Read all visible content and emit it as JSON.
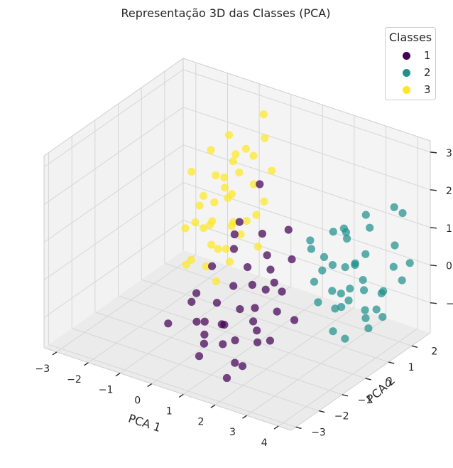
{
  "chart_data": {
    "type": "scatter",
    "projection": "3d",
    "title": "Representação 3D das Classes (PCA)",
    "xlabel": "PCA 1",
    "ylabel": "PCA 2",
    "zlabel": "",
    "xlim": [
      -3.4,
      4.4
    ],
    "ylim": [
      -3.2,
      2.8
    ],
    "zlim": [
      -1.8,
      3.3
    ],
    "xticks": [
      "−3",
      "−2",
      "−1",
      "0",
      "1",
      "2",
      "3",
      "4"
    ],
    "yticks": [
      "−3",
      "−2",
      "−1",
      "0",
      "1",
      "2"
    ],
    "zticks": [
      "−1",
      "0",
      "1",
      "2",
      "3"
    ],
    "xtick_values": [
      -3,
      -2,
      -1,
      0,
      1,
      2,
      3,
      4
    ],
    "ytick_values": [
      -3,
      -2,
      -1,
      0,
      1,
      2
    ],
    "ztick_values": [
      -1,
      0,
      1,
      2,
      3
    ],
    "grid": true,
    "legend": {
      "title": "Classes",
      "position": "top-right"
    },
    "series": [
      {
        "name": "1",
        "color": "#440154",
        "points": [
          [
            1.2,
            -1.6,
            -2.0
          ],
          [
            1.0,
            -1.5,
            -1.2
          ],
          [
            0.4,
            -1.7,
            -1.6
          ],
          [
            1.4,
            -1.2,
            -1.8
          ],
          [
            0.6,
            -1.0,
            -1.0
          ],
          [
            0.9,
            -1.3,
            -0.8
          ],
          [
            1.6,
            -1.8,
            -1.4
          ],
          [
            0.2,
            -1.2,
            -1.3
          ],
          [
            1.1,
            -0.9,
            -0.5
          ],
          [
            0.5,
            -1.6,
            -0.7
          ],
          [
            1.8,
            -1.1,
            -1.1
          ],
          [
            0.8,
            -0.7,
            -1.5
          ],
          [
            0.3,
            -0.8,
            -0.6
          ],
          [
            1.3,
            -0.6,
            -0.9
          ],
          [
            0.7,
            -1.9,
            -1.1
          ],
          [
            1.5,
            -0.8,
            -0.4
          ],
          [
            0.1,
            -1.4,
            -0.9
          ],
          [
            2.0,
            -1.4,
            -0.6
          ],
          [
            1.2,
            -0.5,
            0.0
          ],
          [
            0.6,
            -0.5,
            -0.2
          ],
          [
            -0.2,
            -1.0,
            -0.4
          ],
          [
            0.9,
            -0.3,
            0.3
          ],
          [
            1.4,
            -0.2,
            -0.2
          ],
          [
            0.0,
            -0.6,
            0.2
          ],
          [
            1.7,
            -0.4,
            0.5
          ],
          [
            2.2,
            -0.8,
            -0.3
          ],
          [
            0.4,
            -0.2,
            0.6
          ],
          [
            2.5,
            -1.0,
            0.4
          ],
          [
            -0.5,
            -0.8,
            -0.8
          ],
          [
            1.0,
            0.2,
            1.0
          ],
          [
            1.9,
            0.1,
            1.4
          ],
          [
            0.7,
            0.5,
            2.1
          ],
          [
            1.1,
            0.4,
            -1.9
          ],
          [
            2.3,
            -0.3,
            0.9
          ],
          [
            0.2,
            0.1,
            0.8
          ],
          [
            1.6,
            -0.1,
            0.0
          ],
          [
            -0.8,
            -1.4,
            -1.2
          ],
          [
            2.6,
            -0.6,
            -0.5
          ],
          [
            0.5,
            -0.1,
            1.3
          ],
          [
            1.3,
            0.0,
            0.6
          ]
        ]
      },
      {
        "name": "2",
        "color": "#21918c",
        "points": [
          [
            2.4,
            1.3,
            -0.6
          ],
          [
            2.7,
            1.6,
            -0.9
          ],
          [
            3.0,
            1.9,
            -1.2
          ],
          [
            2.9,
            1.0,
            -0.4
          ],
          [
            3.3,
            1.4,
            -0.1
          ],
          [
            2.2,
            0.8,
            -0.2
          ],
          [
            3.5,
            2.0,
            -0.6
          ],
          [
            2.6,
            0.6,
            0.3
          ],
          [
            3.1,
            0.9,
            -1.5
          ],
          [
            3.7,
            1.7,
            -1.1
          ],
          [
            2.0,
            1.5,
            0.1
          ],
          [
            3.4,
            0.7,
            0.0
          ],
          [
            2.8,
            2.2,
            -1.6
          ],
          [
            3.8,
            2.4,
            -0.4
          ],
          [
            2.5,
            1.8,
            0.6
          ],
          [
            3.2,
            1.2,
            0.4
          ],
          [
            2.1,
            1.1,
            -0.9
          ],
          [
            3.6,
            1.1,
            0.8
          ],
          [
            2.3,
            2.0,
            -0.3
          ],
          [
            3.9,
            1.9,
            0.2
          ],
          [
            2.7,
            1.4,
            1.1
          ],
          [
            3.0,
            0.5,
            0.6
          ],
          [
            3.5,
            2.5,
            0.4
          ],
          [
            2.4,
            0.4,
            0.9
          ],
          [
            3.3,
            2.2,
            -0.8
          ],
          [
            2.9,
            1.6,
            0.1
          ],
          [
            3.8,
            1.3,
            -0.7
          ],
          [
            2.0,
            0.9,
            0.8
          ],
          [
            3.6,
            2.7,
            1.2
          ],
          [
            2.6,
            2.4,
            -1.0
          ],
          [
            3.1,
            1.8,
            1.4
          ],
          [
            2.8,
            0.8,
            1.3
          ],
          [
            3.4,
            1.5,
            -1.4
          ],
          [
            2.2,
            1.7,
            -1.3
          ],
          [
            3.7,
            2.2,
            1.6
          ],
          [
            3.0,
            2.1,
            0.9
          ],
          [
            2.5,
            1.2,
            -1.6
          ],
          [
            3.2,
            0.6,
            -0.5
          ],
          [
            3.9,
            2.6,
            0.0
          ],
          [
            2.4,
            1.9,
            0.7
          ]
        ]
      },
      {
        "name": "3",
        "color": "#fde725",
        "points": [
          [
            -0.2,
            0.6,
            0.8
          ],
          [
            -0.6,
            0.9,
            1.2
          ],
          [
            -1.0,
            0.4,
            0.5
          ],
          [
            0.0,
            1.2,
            1.6
          ],
          [
            -0.4,
            0.2,
            0.2
          ],
          [
            -1.3,
            0.8,
            1.1
          ],
          [
            -0.8,
            1.4,
            1.9
          ],
          [
            0.3,
            0.9,
            1.0
          ],
          [
            -0.1,
            0.3,
            -0.1
          ],
          [
            -1.5,
            0.3,
            0.4
          ],
          [
            -0.5,
            1.1,
            2.3
          ],
          [
            -0.9,
            0.6,
            0.0
          ],
          [
            0.1,
            0.5,
            0.6
          ],
          [
            -1.2,
            1.2,
            1.5
          ],
          [
            -0.3,
            1.6,
            2.1
          ],
          [
            -0.7,
            0.1,
            -0.3
          ],
          [
            -1.6,
            0.7,
            1.7
          ],
          [
            0.2,
            1.4,
            2.8
          ],
          [
            -1.1,
            1.0,
            0.9
          ],
          [
            -0.4,
            0.8,
            1.4
          ],
          [
            -1.4,
            0.2,
            -0.5
          ],
          [
            -0.2,
            1.9,
            3.1
          ],
          [
            -0.8,
            0.5,
            0.7
          ],
          [
            0.4,
            1.1,
            1.3
          ],
          [
            -1.0,
            1.5,
            2.5
          ],
          [
            -0.6,
            0.4,
            -0.8
          ],
          [
            -1.7,
            1.0,
            0.2
          ],
          [
            0.0,
            0.0,
            0.4
          ],
          [
            -1.2,
            0.5,
            1.0
          ],
          [
            -0.3,
            1.3,
            0.5
          ],
          [
            -0.9,
            1.8,
            1.4
          ],
          [
            0.5,
            0.7,
            0.3
          ],
          [
            -1.5,
            1.4,
            2.0
          ],
          [
            -0.5,
            0.0,
            0.9
          ],
          [
            -1.1,
            0.0,
            -0.2
          ],
          [
            -0.1,
            1.0,
            2.6
          ],
          [
            -1.3,
            1.7,
            1.2
          ],
          [
            -0.7,
            1.2,
            0.3
          ],
          [
            0.2,
            1.7,
            1.8
          ],
          [
            -0.4,
            0.5,
            1.7
          ]
        ]
      }
    ]
  }
}
